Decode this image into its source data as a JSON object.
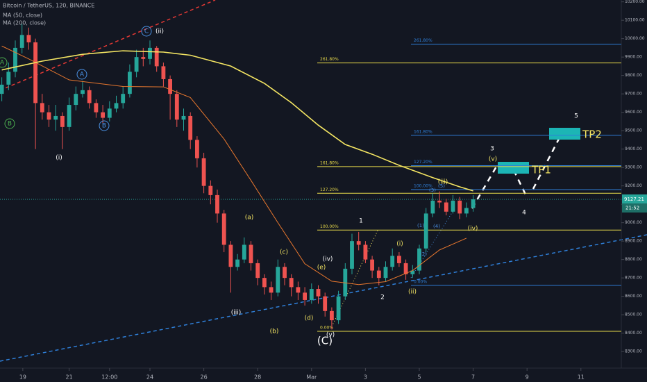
{
  "chart_data": {
    "type": "candlestick",
    "title": "Bitcoin / TetherUS, 120, BINANCE",
    "x": [
      -0.5,
      -0.25,
      0,
      0.25,
      0.5,
      0.75,
      1,
      1.25,
      1.5,
      1.75,
      2,
      2.25,
      2.5,
      2.75,
      3,
      3.25,
      3.5,
      3.75,
      4,
      4.25,
      4.5,
      4.75,
      5,
      5.25,
      5.5,
      5.75,
      6,
      6.25,
      6.5,
      6.75,
      7,
      7.25,
      7.5,
      7.75,
      8,
      8.25,
      8.5,
      8.75,
      9,
      9.25,
      9.5,
      9.75,
      10,
      10.25,
      10.5,
      10.75,
      11,
      11.25,
      11.5,
      11.75,
      12,
      12.25,
      12.5,
      12.75,
      13,
      13.25,
      13.5,
      13.75,
      14,
      14.25,
      14.5,
      14.75,
      15,
      15.25,
      15.5,
      15.75,
      16,
      16.25,
      16.5,
      16.75,
      17
    ],
    "open": [
      9700,
      9750,
      9820,
      9950,
      10020,
      9980,
      9650,
      9600,
      9560,
      9580,
      9520,
      9640,
      9700,
      9720,
      9650,
      9600,
      9570,
      9620,
      9650,
      9700,
      9820,
      9900,
      9890,
      9950,
      9850,
      9780,
      9700,
      9560,
      9580,
      9450,
      9350,
      9200,
      9150,
      9050,
      8880,
      8760,
      8800,
      8880,
      8780,
      8700,
      8650,
      8620,
      8760,
      8700,
      8650,
      8620,
      8580,
      8640,
      8600,
      8520,
      8470,
      8600,
      8750,
      8900,
      8880,
      8800,
      8740,
      8700,
      8760,
      8820,
      8780,
      8720,
      8740,
      8860,
      9050,
      9120,
      9110,
      9060,
      9120,
      9050,
      9080
    ],
    "high": [
      9790,
      9870,
      9990,
      10080,
      10060,
      10000,
      9700,
      9640,
      9640,
      9600,
      9680,
      9740,
      9770,
      9740,
      9670,
      9640,
      9660,
      9690,
      9740,
      9860,
      9940,
      9950,
      9990,
      9960,
      9870,
      9800,
      9720,
      9620,
      9600,
      9470,
      9380,
      9230,
      9180,
      9070,
      8900,
      8830,
      8920,
      8900,
      8800,
      8720,
      8680,
      8800,
      8780,
      8720,
      8680,
      8650,
      8670,
      8660,
      8620,
      8540,
      8630,
      8780,
      8940,
      8950,
      8900,
      8820,
      8760,
      8790,
      8860,
      8840,
      8800,
      8770,
      8880,
      9080,
      9160,
      9170,
      9130,
      9150,
      9140,
      9110,
      9150
    ],
    "low": [
      9660,
      9720,
      9790,
      9920,
      9940,
      9400,
      9560,
      9520,
      9500,
      9400,
      9500,
      9610,
      9680,
      9620,
      9570,
      9540,
      9550,
      9600,
      9620,
      9680,
      9790,
      9850,
      9860,
      9820,
      9740,
      9560,
      9520,
      9500,
      9400,
      9300,
      9160,
      9100,
      9000,
      8840,
      8620,
      8740,
      8780,
      8740,
      8660,
      8610,
      8580,
      8600,
      8660,
      8600,
      8580,
      8550,
      8560,
      8560,
      8490,
      8420,
      8450,
      8580,
      8720,
      8850,
      8780,
      8700,
      8660,
      8680,
      8740,
      8760,
      8690,
      8700,
      8720,
      8840,
      9030,
      9080,
      9040,
      9050,
      9020,
      9030,
      9060
    ],
    "close": [
      9750,
      9820,
      9950,
      10020,
      9980,
      9650,
      9600,
      9560,
      9580,
      9520,
      9640,
      9700,
      9720,
      9650,
      9600,
      9570,
      9620,
      9650,
      9700,
      9820,
      9900,
      9890,
      9950,
      9850,
      9780,
      9700,
      9560,
      9580,
      9450,
      9350,
      9200,
      9150,
      9050,
      8880,
      8760,
      8800,
      8880,
      8780,
      8700,
      8650,
      8620,
      8760,
      8700,
      8650,
      8620,
      8580,
      8640,
      8600,
      8520,
      8470,
      8600,
      8750,
      8900,
      8880,
      8800,
      8740,
      8700,
      8760,
      8820,
      8780,
      8720,
      8740,
      8860,
      9050,
      9120,
      9110,
      9060,
      9120,
      9050,
      9080,
      9127
    ],
    "up_color": "#26a69a",
    "down_color": "#ef5350",
    "series": [
      {
        "name": "MA (50, close)",
        "color": "#e8772e",
        "x": [
          -0.5,
          0.5,
          2,
          4,
          5.5,
          6.5,
          7.75,
          8.75,
          9.75,
          10.75,
          11.75,
          12.75,
          13.75,
          14.75,
          15.75,
          16.75
        ],
        "values": [
          9960,
          9890,
          9776,
          9740,
          9738,
          9680,
          9455,
          9230,
          9000,
          8777,
          8682,
          8664,
          8680,
          8740,
          8852,
          8916
        ]
      },
      {
        "name": "MA (200, close)",
        "color": "#f5e663",
        "x": [
          -0.5,
          1,
          2.5,
          4,
          5.5,
          6.5,
          8,
          9.25,
          10.25,
          11.25,
          12.25,
          13.25,
          14.25,
          15.5,
          16.5,
          17
        ],
        "values": [
          9830,
          9878,
          9915,
          9934,
          9927,
          9910,
          9851,
          9757,
          9652,
          9530,
          9425,
          9372,
          9312,
          9245,
          9195,
          9173
        ]
      }
    ],
    "fib_levels": [
      {
        "label": "261.80%",
        "value": 9868,
        "color": "#e6d84a"
      },
      {
        "label": "161.80%",
        "value": 9305,
        "color": "#e6d84a"
      },
      {
        "label": "127.20%",
        "value": 9160,
        "color": "#e6d84a"
      },
      {
        "label": "100.00%",
        "value": 8960,
        "color": "#e6d84a"
      },
      {
        "label": "0.00%",
        "value": 8410,
        "color": "#e6d84a"
      },
      {
        "label": "261.80%",
        "value": 9970,
        "color": "#2f7fd8"
      },
      {
        "label": "161.80%",
        "value": 9475,
        "color": "#2f7fd8"
      },
      {
        "label": "127.20%",
        "value": 9310,
        "color": "#2f7fd8"
      },
      {
        "label": "100.00%",
        "value": 9180,
        "color": "#2f7fd8"
      },
      {
        "label": "0.00%",
        "value": 8660,
        "color": "#2f7fd8"
      }
    ],
    "annotations": [
      {
        "text": "A",
        "color": "#4caf50",
        "circled": true
      },
      {
        "text": "B",
        "color": "#4caf50",
        "circled": true
      },
      {
        "text": "(i)",
        "color": "#ffffff",
        "circled": false
      },
      {
        "text": "A",
        "color": "#4a90e2",
        "circled": true
      },
      {
        "text": "B",
        "color": "#4a90e2",
        "circled": true
      },
      {
        "text": "C",
        "color": "#4a90e2",
        "circled": true
      },
      {
        "text": "(ii)",
        "color": "#ffffff",
        "circled": false
      },
      {
        "text": "(iii)",
        "color": "#ffffff",
        "circled": false
      },
      {
        "text": "(a)",
        "color": "#f5e663",
        "circled": false
      },
      {
        "text": "(b)",
        "color": "#f5e663",
        "circled": false
      },
      {
        "text": "(c)",
        "color": "#f5e663",
        "circled": false
      },
      {
        "text": "(d)",
        "color": "#f5e663",
        "circled": false
      },
      {
        "text": "(e)",
        "color": "#f5e663",
        "circled": false
      },
      {
        "text": "(iv)",
        "color": "#ffffff",
        "circled": false
      },
      {
        "text": "(C)",
        "color": "#ffffff",
        "circled": false
      },
      {
        "text": "(v)",
        "color": "#ffffff",
        "circled": false
      },
      {
        "text": "1",
        "color": "#ffffff",
        "circled": false
      },
      {
        "text": "2",
        "color": "#ffffff",
        "circled": false
      },
      {
        "text": "(i)",
        "color": "#f5e663",
        "circled": false
      },
      {
        "text": "(ii)",
        "color": "#f5e663",
        "circled": false
      },
      {
        "text": "(iii)",
        "color": "#f5e663",
        "circled": false
      },
      {
        "text": "(iv)",
        "color": "#f5e663",
        "circled": false
      },
      {
        "text": "(v)",
        "color": "#f5e663",
        "circled": false
      },
      {
        "text": "3",
        "color": "#ffffff",
        "circled": false
      },
      {
        "text": "4",
        "color": "#ffffff",
        "circled": false
      },
      {
        "text": "5",
        "color": "#ffffff",
        "circled": false
      },
      {
        "text": "(1)",
        "color": "#4a90e2",
        "circled": false
      },
      {
        "text": "(2)",
        "color": "#4a90e2",
        "circled": false
      },
      {
        "text": "(3)",
        "color": "#4a90e2",
        "circled": false
      },
      {
        "text": "(4)",
        "color": "#4a90e2",
        "circled": false
      },
      {
        "text": "(5)",
        "color": "#4a90e2",
        "circled": false
      },
      {
        "text": "TP1",
        "color": "#f5e663",
        "circled": false
      },
      {
        "text": "TP2",
        "color": "#f5e663",
        "circled": false
      }
    ],
    "last_price": {
      "value": 9127.21,
      "label": "9127.21"
    },
    "countdown": "21:52",
    "xlim": [
      -0.567,
      22.5
    ],
    "xticks": [
      {
        "value": 0.28,
        "label": "19"
      },
      {
        "value": 2,
        "label": "21"
      },
      {
        "value": 3.5,
        "label": "12:00"
      },
      {
        "value": 5,
        "label": "24"
      },
      {
        "value": 7,
        "label": "26"
      },
      {
        "value": 9,
        "label": "28"
      },
      {
        "value": 11,
        "label": "Mar"
      },
      {
        "value": 13,
        "label": "3"
      },
      {
        "value": 15,
        "label": "5"
      },
      {
        "value": 17,
        "label": "7"
      },
      {
        "value": 19,
        "label": "9"
      },
      {
        "value": 21,
        "label": "11"
      }
    ],
    "ylim": [
      8210,
      10210
    ],
    "yticks": [
      {
        "value": 8300,
        "label": "8300.00"
      },
      {
        "value": 8400,
        "label": "8400.00"
      },
      {
        "value": 8500,
        "label": "8500.00"
      },
      {
        "value": 8600,
        "label": "8600.00"
      },
      {
        "value": 8700,
        "label": "8700.00"
      },
      {
        "value": 8800,
        "label": "8800.00"
      },
      {
        "value": 8900,
        "label": "8900.00"
      },
      {
        "value": 9000,
        "label": "9000.00"
      },
      {
        "value": 9100,
        "label": "9100.00"
      },
      {
        "value": 9200,
        "label": "9200.00"
      },
      {
        "value": 9300,
        "label": "9300.00"
      },
      {
        "value": 9400,
        "label": "9400.00"
      },
      {
        "value": 9500,
        "label": "9500.00"
      },
      {
        "value": 9600,
        "label": "9600.00"
      },
      {
        "value": 9700,
        "label": "9700.00"
      },
      {
        "value": 9800,
        "label": "9800.00"
      },
      {
        "value": 9900,
        "label": "9900.00"
      },
      {
        "value": 10000,
        "label": "10000.00"
      },
      {
        "value": 10100,
        "label": "10100.00"
      },
      {
        "value": 10200,
        "label": "10200.00"
      }
    ]
  }
}
